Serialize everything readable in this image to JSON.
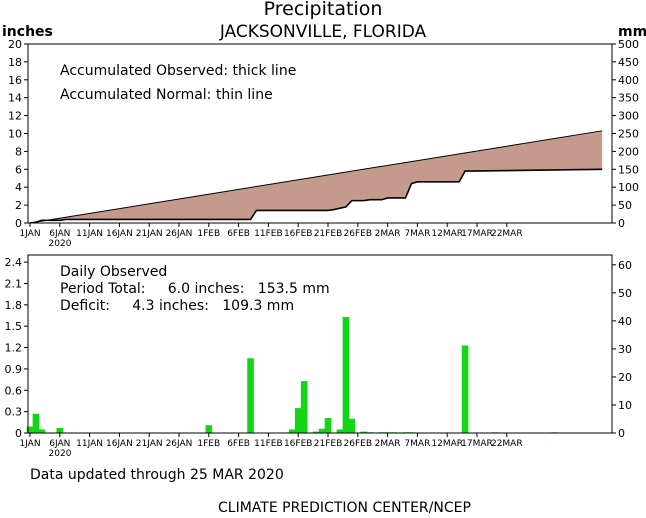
{
  "header": {
    "title": "Precipitation",
    "location": "JACKSONVILLE, FLORIDA",
    "unit_left": "inches",
    "unit_right": "mm"
  },
  "top_panel": {
    "legend_observed": "Accumulated Observed: thick line",
    "legend_normal": "Accumulated Normal: thin line"
  },
  "bottom_panel": {
    "heading": "Daily Observed",
    "period_total": "Period Total:     6.0 inches:   153.5 mm",
    "deficit": "Deficit:     4.3 inches:   109.3 mm"
  },
  "footer": {
    "updated": "Data updated through 25 MAR 2020",
    "credit": "CLIMATE PREDICTION CENTER/NCEP"
  },
  "colors": {
    "deficit_fill": "#c49a8c",
    "bar": "#14d614"
  },
  "chart_data": [
    {
      "type": "area",
      "x_tick_labels": [
        "1JAN",
        "6JAN",
        "11JAN",
        "16JAN",
        "21JAN",
        "26JAN",
        "1FEB",
        "6FEB",
        "11FEB",
        "16FEB",
        "21FEB",
        "26FEB",
        "2MAR",
        "7MAR",
        "12MAR",
        "17MAR",
        "22MAR"
      ],
      "x_year_label": "2020",
      "ylabel_left": "inches",
      "ylabel_right": "mm",
      "ylim_inches": [
        0,
        20
      ],
      "yticks_inches": [
        0,
        2,
        4,
        6,
        8,
        10,
        12,
        14,
        16,
        18,
        20
      ],
      "ylim_mm": [
        0,
        500
      ],
      "yticks_mm": [
        0,
        50,
        100,
        150,
        200,
        250,
        300,
        350,
        400,
        450,
        500
      ],
      "series": [
        {
          "name": "Accumulated Observed",
          "x_day": [
            0,
            1,
            2,
            3,
            5,
            6,
            37,
            38,
            50,
            51,
            53,
            54,
            56,
            57,
            59,
            60,
            61,
            63,
            64,
            65,
            66,
            67,
            68,
            72,
            73,
            74,
            96
          ],
          "values": [
            0,
            0.1,
            0.3,
            0.3,
            0.3,
            0.4,
            0.4,
            1.4,
            1.4,
            1.5,
            1.8,
            2.5,
            2.5,
            2.6,
            2.6,
            2.8,
            2.8,
            2.8,
            4.4,
            4.6,
            4.6,
            4.6,
            4.6,
            4.6,
            5.8,
            5.8,
            6.0
          ]
        },
        {
          "name": "Accumulated Normal",
          "x_day": [
            0,
            96
          ],
          "values": [
            0,
            10.3
          ]
        }
      ]
    },
    {
      "type": "bar",
      "x_tick_labels": [
        "1JAN",
        "6JAN",
        "11JAN",
        "16JAN",
        "21JAN",
        "26JAN",
        "1FEB",
        "6FEB",
        "11FEB",
        "16FEB",
        "21FEB",
        "26FEB",
        "2MAR",
        "7MAR",
        "12MAR",
        "17MAR",
        "22MAR"
      ],
      "x_year_label": "2020",
      "ylim_inches": [
        0,
        2.5
      ],
      "yticks_inches": [
        0,
        0.3,
        0.6,
        0.9,
        1.2,
        1.5,
        1.8,
        2.1,
        2.4
      ],
      "ylim_mm": [
        0,
        63.5
      ],
      "yticks_mm": [
        0,
        10,
        20,
        30,
        40,
        50,
        60
      ],
      "series": [
        {
          "name": "Daily Observed",
          "x_day": [
            0,
            1,
            2,
            5,
            30,
            37,
            44,
            45,
            46,
            48,
            49,
            50,
            52,
            53,
            54,
            56,
            57,
            59,
            60,
            61,
            63,
            64,
            73,
            78,
            88
          ],
          "values": [
            0.09,
            0.27,
            0.05,
            0.07,
            0.11,
            1.05,
            0.05,
            0.35,
            0.73,
            0.02,
            0.06,
            0.21,
            0.05,
            1.63,
            0.2,
            0.02,
            0.01,
            0.01,
            0.01,
            0.01,
            0.01,
            0.01,
            1.23,
            0.01,
            0.01
          ]
        }
      ]
    }
  ]
}
